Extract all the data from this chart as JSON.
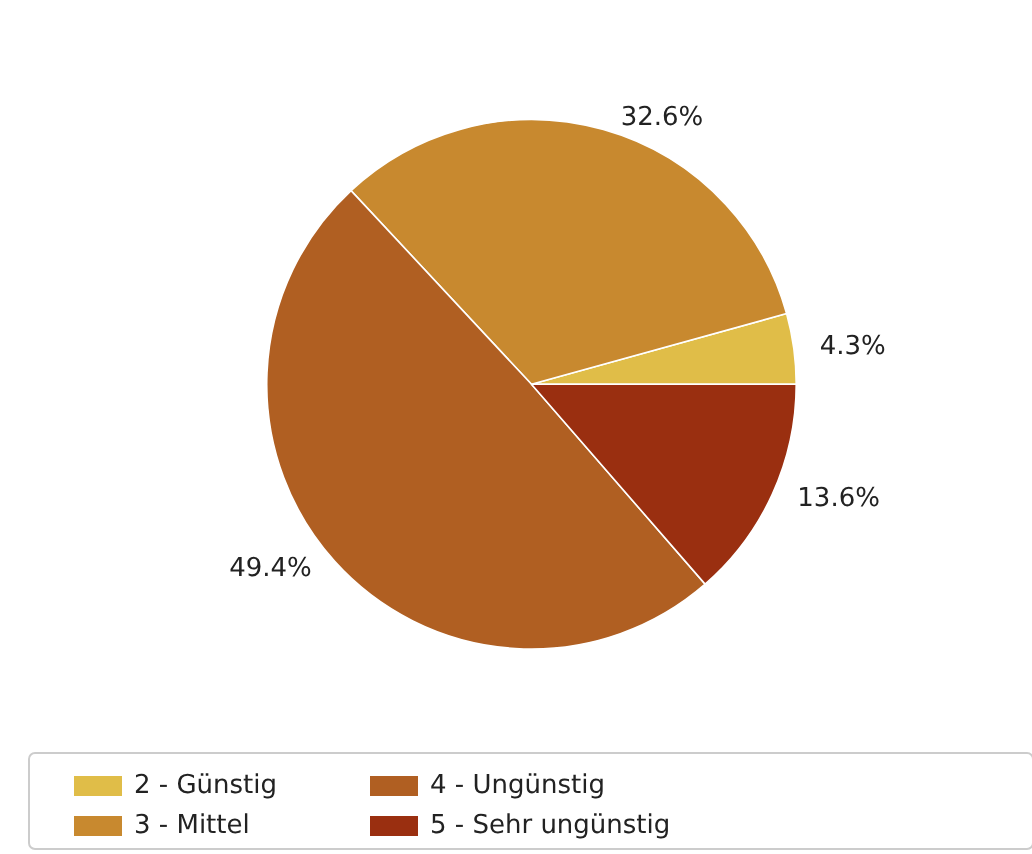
{
  "chart_data": {
    "type": "pie",
    "categories": [
      "2 - Günstig",
      "3 - Mittel",
      "4 - Ungünstig",
      "5 - Sehr ungünstig"
    ],
    "values": [
      4.3,
      32.6,
      49.4,
      13.6
    ],
    "value_labels": [
      "4.3%",
      "32.6%",
      "49.4%",
      "13.6%"
    ],
    "colors": [
      "#e0bd48",
      "#c8892f",
      "#b05f22",
      "#9a2f10"
    ],
    "legend": "bottom"
  }
}
